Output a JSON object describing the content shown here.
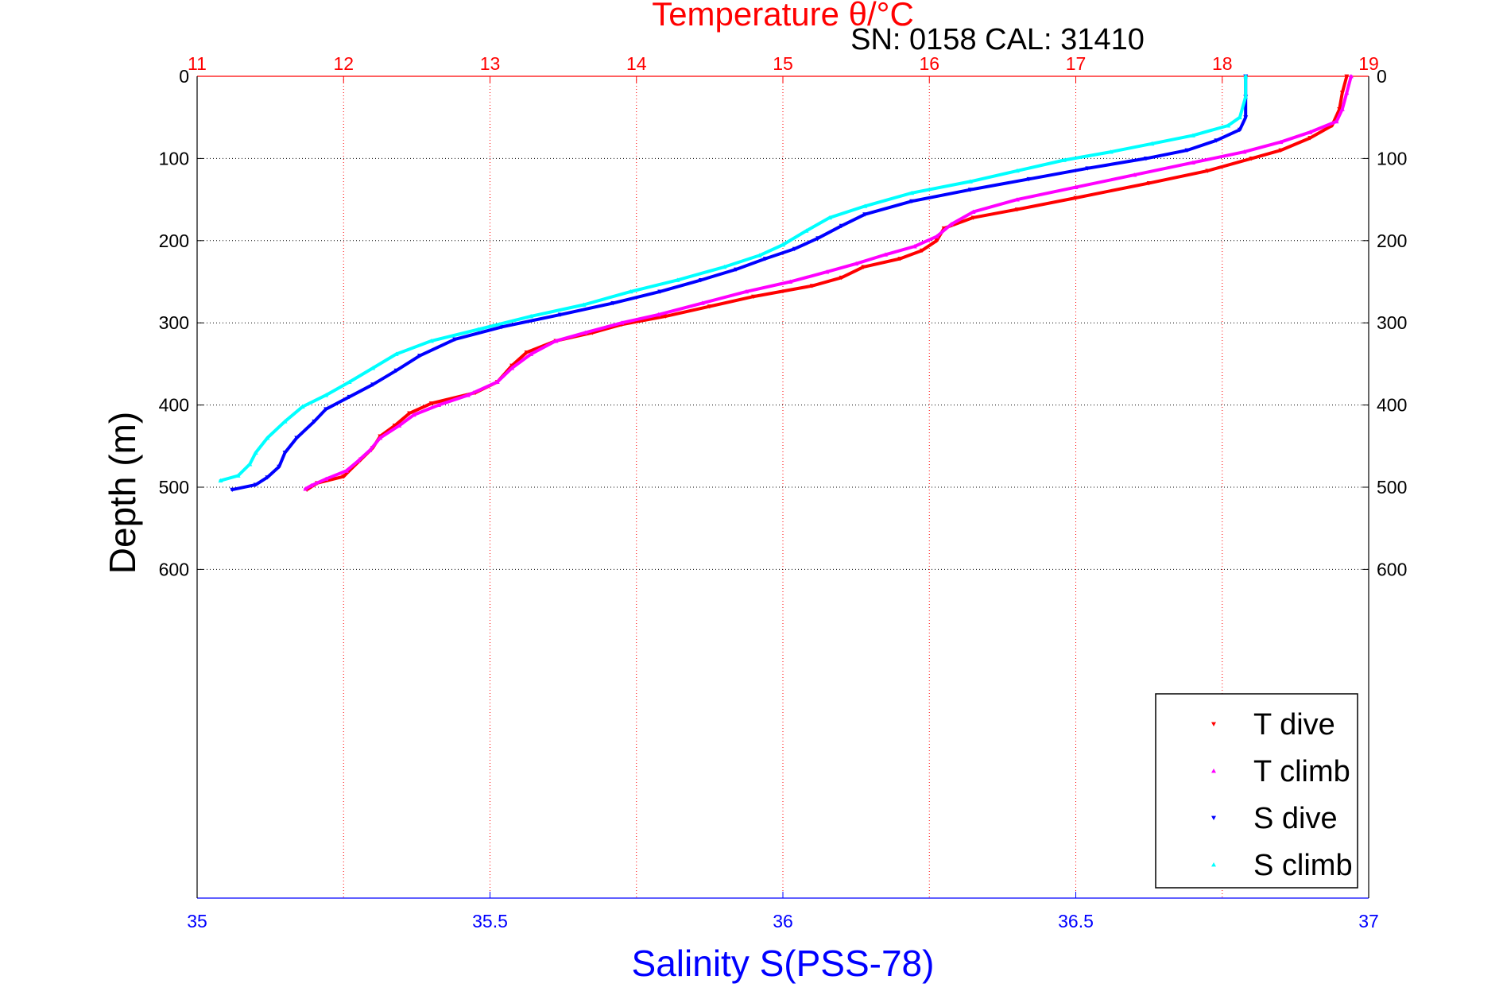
{
  "chart_data": {
    "type": "scatter",
    "title": "Temperature θ/°C",
    "subtitle": "SN: 0158  CAL: 31410",
    "xlabel_bottom": "Salinity S(PSS-78)",
    "ylabel": "Depth (m)",
    "top_axis": {
      "label": "Temperature θ/°C",
      "range": [
        11,
        19
      ],
      "ticks": [
        "11",
        "12",
        "13",
        "14",
        "15",
        "16",
        "17",
        "18",
        "19"
      ],
      "color": "#ff0000",
      "grid": true
    },
    "bottom_axis": {
      "label": "Salinity S(PSS-78)",
      "range": [
        35,
        37
      ],
      "ticks": [
        "35",
        "35.5",
        "36",
        "36.5",
        "37"
      ],
      "color": "#0000ff"
    },
    "y_axis": {
      "label": "Depth (m)",
      "range": [
        0,
        1000
      ],
      "reversed": true,
      "ticks": [
        "0",
        "100",
        "200",
        "300",
        "400",
        "500",
        "600"
      ],
      "grid": true
    },
    "legend": {
      "placement": "bottom-right",
      "entries": [
        "T dive",
        "T climb",
        "S dive",
        "S climb"
      ]
    },
    "series": [
      {
        "name": "T dive",
        "axis": "top",
        "color": "#ff0000",
        "marker": "triangle-down",
        "points": [
          [
            18.85,
            0
          ],
          [
            18.82,
            20
          ],
          [
            18.8,
            40
          ],
          [
            18.75,
            60
          ],
          [
            18.6,
            75
          ],
          [
            18.4,
            90
          ],
          [
            18.2,
            100
          ],
          [
            17.9,
            115
          ],
          [
            17.5,
            130
          ],
          [
            17.0,
            148
          ],
          [
            16.6,
            162
          ],
          [
            16.3,
            172
          ],
          [
            16.1,
            185
          ],
          [
            16.05,
            200
          ],
          [
            15.95,
            212
          ],
          [
            15.8,
            222
          ],
          [
            15.55,
            232
          ],
          [
            15.4,
            245
          ],
          [
            15.2,
            255
          ],
          [
            14.8,
            268
          ],
          [
            14.5,
            280
          ],
          [
            14.2,
            292
          ],
          [
            13.9,
            302
          ],
          [
            13.7,
            312
          ],
          [
            13.45,
            322
          ],
          [
            13.25,
            336
          ],
          [
            13.15,
            352
          ],
          [
            13.05,
            372
          ],
          [
            12.9,
            385
          ],
          [
            12.6,
            398
          ],
          [
            12.45,
            410
          ],
          [
            12.35,
            425
          ],
          [
            12.25,
            438
          ],
          [
            12.2,
            452
          ],
          [
            12.12,
            466
          ],
          [
            12.05,
            478
          ],
          [
            12.0,
            487
          ],
          [
            11.82,
            495
          ],
          [
            11.75,
            503
          ]
        ]
      },
      {
        "name": "T climb",
        "axis": "top",
        "color": "#ff00ff",
        "marker": "triangle-up",
        "points": [
          [
            18.88,
            0
          ],
          [
            18.85,
            20
          ],
          [
            18.82,
            40
          ],
          [
            18.78,
            55
          ],
          [
            18.6,
            68
          ],
          [
            18.4,
            80
          ],
          [
            18.15,
            92
          ],
          [
            17.8,
            105
          ],
          [
            17.4,
            120
          ],
          [
            17.0,
            135
          ],
          [
            16.6,
            150
          ],
          [
            16.3,
            165
          ],
          [
            16.15,
            180
          ],
          [
            16.05,
            195
          ],
          [
            15.9,
            207
          ],
          [
            15.7,
            217
          ],
          [
            15.5,
            228
          ],
          [
            15.3,
            238
          ],
          [
            15.05,
            250
          ],
          [
            14.75,
            262
          ],
          [
            14.45,
            276
          ],
          [
            14.15,
            290
          ],
          [
            13.9,
            300
          ],
          [
            13.65,
            312
          ],
          [
            13.45,
            322
          ],
          [
            13.28,
            338
          ],
          [
            13.15,
            355
          ],
          [
            13.05,
            372
          ],
          [
            12.85,
            388
          ],
          [
            12.65,
            400
          ],
          [
            12.48,
            412
          ],
          [
            12.38,
            425
          ],
          [
            12.25,
            440
          ],
          [
            12.18,
            455
          ],
          [
            12.1,
            468
          ],
          [
            12.02,
            480
          ],
          [
            11.88,
            490
          ],
          [
            11.78,
            498
          ],
          [
            11.74,
            502
          ]
        ]
      },
      {
        "name": "S dive",
        "axis": "bottom",
        "color": "#0000ff",
        "marker": "triangle-down",
        "points": [
          [
            36.79,
            0
          ],
          [
            36.79,
            25
          ],
          [
            36.79,
            50
          ],
          [
            36.78,
            65
          ],
          [
            36.74,
            78
          ],
          [
            36.69,
            90
          ],
          [
            36.62,
            100
          ],
          [
            36.52,
            112
          ],
          [
            36.42,
            125
          ],
          [
            36.32,
            138
          ],
          [
            36.22,
            152
          ],
          [
            36.14,
            168
          ],
          [
            36.1,
            182
          ],
          [
            36.06,
            197
          ],
          [
            36.02,
            210
          ],
          [
            35.97,
            222
          ],
          [
            35.92,
            235
          ],
          [
            35.86,
            248
          ],
          [
            35.79,
            262
          ],
          [
            35.71,
            276
          ],
          [
            35.62,
            290
          ],
          [
            35.52,
            305
          ],
          [
            35.44,
            320
          ],
          [
            35.38,
            340
          ],
          [
            35.34,
            358
          ],
          [
            35.3,
            375
          ],
          [
            35.26,
            390
          ],
          [
            35.22,
            405
          ],
          [
            35.2,
            420
          ],
          [
            35.17,
            440
          ],
          [
            35.15,
            458
          ],
          [
            35.14,
            475
          ],
          [
            35.12,
            488
          ],
          [
            35.1,
            497
          ],
          [
            35.06,
            503
          ]
        ]
      },
      {
        "name": "S climb",
        "axis": "bottom",
        "color": "#00ffff",
        "marker": "triangle-up",
        "points": [
          [
            36.79,
            0
          ],
          [
            36.79,
            25
          ],
          [
            36.78,
            50
          ],
          [
            36.76,
            60
          ],
          [
            36.7,
            72
          ],
          [
            36.63,
            82
          ],
          [
            36.56,
            92
          ],
          [
            36.48,
            102
          ],
          [
            36.4,
            115
          ],
          [
            36.32,
            128
          ],
          [
            36.22,
            142
          ],
          [
            36.14,
            158
          ],
          [
            36.08,
            172
          ],
          [
            36.04,
            188
          ],
          [
            36.0,
            205
          ],
          [
            35.96,
            218
          ],
          [
            35.9,
            232
          ],
          [
            35.82,
            248
          ],
          [
            35.74,
            262
          ],
          [
            35.66,
            278
          ],
          [
            35.57,
            292
          ],
          [
            35.48,
            308
          ],
          [
            35.4,
            322
          ],
          [
            35.34,
            338
          ],
          [
            35.3,
            355
          ],
          [
            35.26,
            372
          ],
          [
            35.22,
            388
          ],
          [
            35.18,
            402
          ],
          [
            35.15,
            420
          ],
          [
            35.12,
            440
          ],
          [
            35.1,
            458
          ],
          [
            35.09,
            472
          ],
          [
            35.07,
            486
          ],
          [
            35.04,
            492
          ]
        ]
      }
    ]
  }
}
